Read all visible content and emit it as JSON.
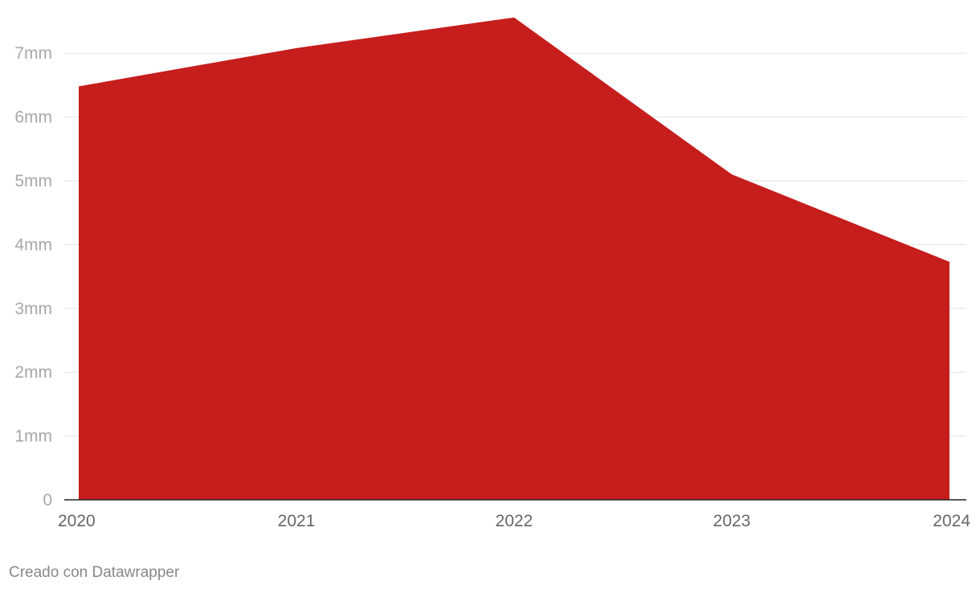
{
  "chart_data": {
    "type": "area",
    "x": [
      "2020",
      "2021",
      "2022",
      "2023",
      "2024"
    ],
    "series": [
      {
        "values": [
          6.48,
          7.08,
          7.56,
          5.1,
          3.73
        ]
      }
    ],
    "y_ticks": [
      "0",
      "1mm",
      "2mm",
      "3mm",
      "4mm",
      "5mm",
      "6mm",
      "7mm"
    ],
    "ylim": [
      0,
      7.5
    ],
    "grid": true,
    "color": "#c61d1d"
  },
  "footer": {
    "credit": "Creado con Datawrapper"
  }
}
